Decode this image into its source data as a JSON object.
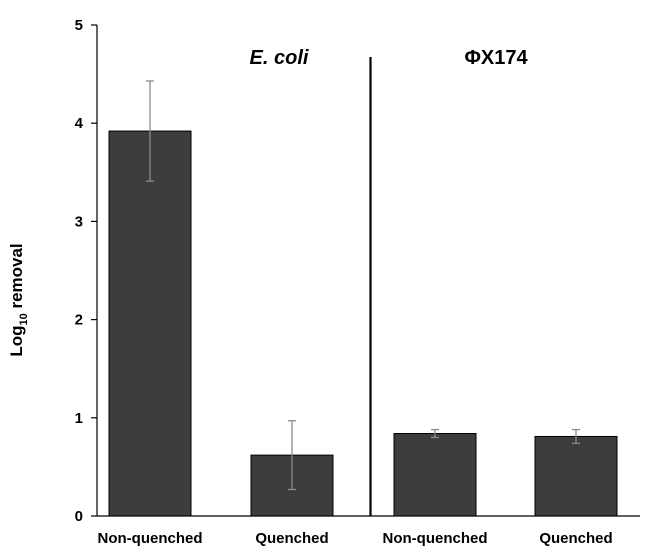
{
  "chart_data": {
    "type": "bar",
    "categories": [
      "Non-quenched",
      "Quenched",
      "Non-quenched",
      "Quenched"
    ],
    "values": [
      3.92,
      0.62,
      0.84,
      0.81
    ],
    "error": [
      0.51,
      0.35,
      0.04,
      0.07
    ],
    "groups": [
      {
        "label": "E. coli",
        "italic": true,
        "categories": [
          0,
          1
        ]
      },
      {
        "label": "ΦX174",
        "italic": false,
        "categories": [
          2,
          3
        ]
      }
    ],
    "ylabel": {
      "base": "Log",
      "sub": "10",
      "rest": " removal"
    },
    "ylim": [
      0,
      5
    ],
    "yticks": [
      0,
      1,
      2,
      3,
      4,
      5
    ],
    "grid": false,
    "colors": {
      "bar_fill": "#3d3d3d",
      "bar_stroke": "#000000",
      "error_bar": "#8c8c8c",
      "axis": "#000000",
      "divider": "#000000"
    }
  }
}
